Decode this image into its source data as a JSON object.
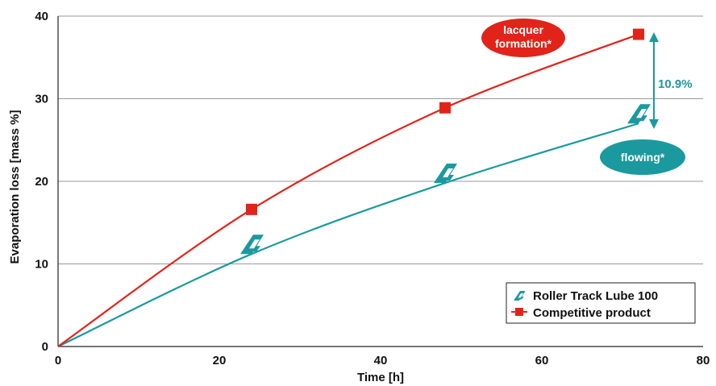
{
  "chart_data": {
    "type": "line",
    "title": "",
    "xlabel": "Time [h]",
    "ylabel": "Evaporation loss [mass %]",
    "xlim": [
      0,
      80
    ],
    "ylim": [
      0,
      40
    ],
    "x_ticks": [
      0,
      20,
      40,
      60,
      80
    ],
    "y_ticks": [
      0,
      10,
      20,
      30,
      40
    ],
    "grid": "horizontal",
    "legend_position": "bottom-right",
    "series": [
      {
        "name": "Roller Track Lube 100",
        "color": "#1a9a9f",
        "marker": "logo-icon",
        "points": [
          [
            0,
            0
          ],
          [
            24,
            11.2
          ],
          [
            48,
            19.8
          ],
          [
            72,
            27
          ]
        ]
      },
      {
        "name": "Competitive product",
        "color": "#e2231a",
        "marker": "square",
        "points": [
          [
            0,
            0
          ],
          [
            24,
            16.6
          ],
          [
            48,
            28.9
          ],
          [
            72,
            37.8
          ]
        ]
      }
    ],
    "annotations": {
      "competitor_bubble": {
        "lines": [
          "lacquer",
          "formation*"
        ],
        "color": "#e2231a"
      },
      "roller_bubble": {
        "lines": [
          "flowing*"
        ],
        "color": "#1a9a9f"
      },
      "difference": {
        "text": "10.9%",
        "color": "#1a9a9f"
      }
    }
  }
}
